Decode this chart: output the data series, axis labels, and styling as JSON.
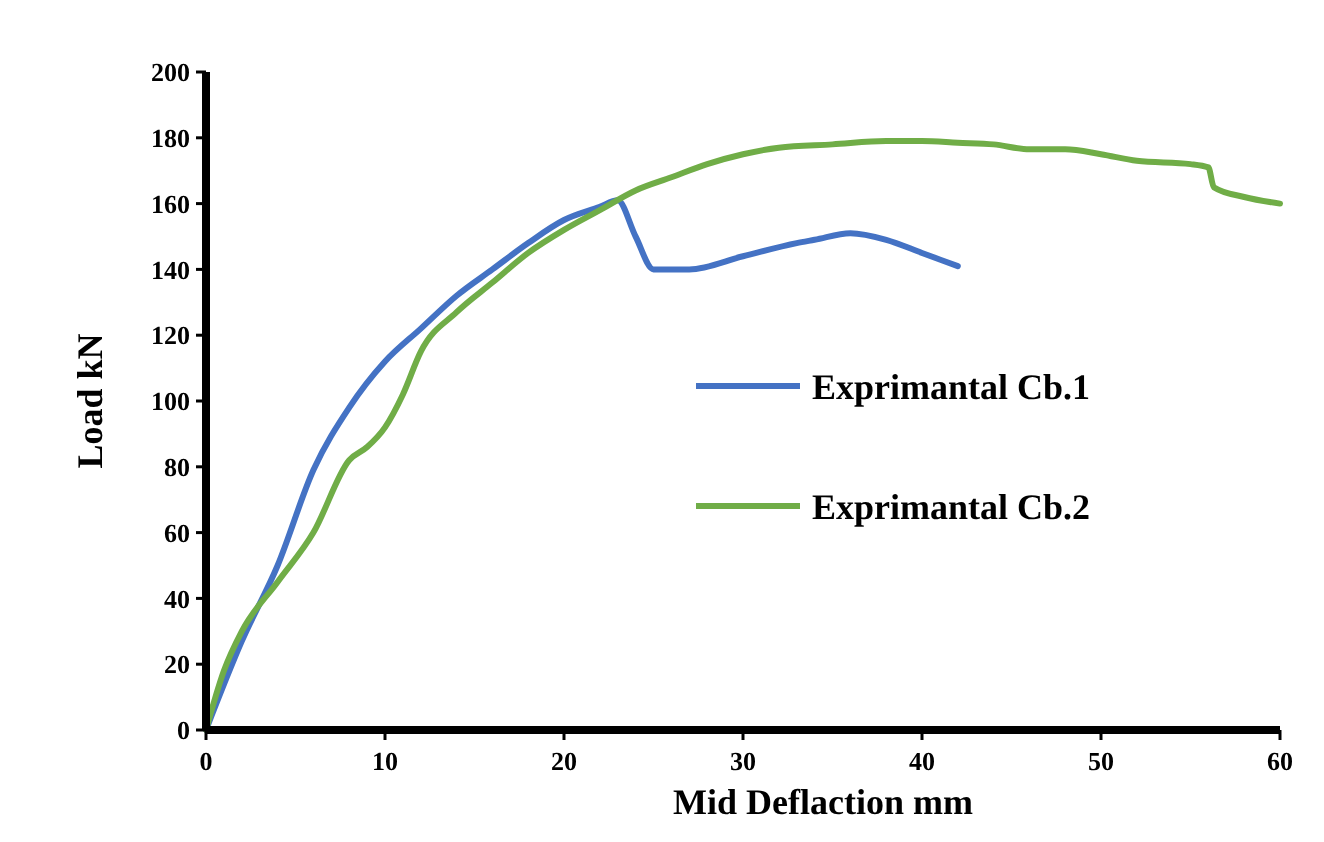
{
  "chart_data": {
    "type": "line",
    "xlabel": "Mid Deflaction mm",
    "ylabel": "Load kN",
    "xlim": [
      0,
      60
    ],
    "ylim": [
      0,
      200
    ],
    "xticks": [
      0,
      10,
      20,
      30,
      40,
      50,
      60
    ],
    "yticks": [
      0,
      20,
      40,
      60,
      80,
      100,
      120,
      140,
      160,
      180,
      200
    ],
    "grid": false,
    "legend": "right",
    "marker": "none",
    "line_style": "solid",
    "series": [
      {
        "name": "Exprimantal Cb.1",
        "color": "#4472c4",
        "x": [
          0,
          2,
          4,
          6,
          8,
          10,
          12,
          14,
          16,
          18,
          20,
          22,
          23,
          24,
          25,
          27,
          30,
          33,
          34,
          36,
          38,
          40,
          42
        ],
        "values": [
          0,
          27,
          50,
          79,
          98,
          112,
          122,
          132,
          140,
          148,
          155,
          159,
          161,
          150,
          140,
          140,
          144,
          148,
          149,
          151,
          149,
          145,
          141
        ]
      },
      {
        "name": "Exprimantal Cb.2",
        "color": "#70ad47",
        "x": [
          0,
          1,
          2,
          4,
          6,
          8,
          9,
          10,
          11,
          12,
          14,
          16,
          18,
          20,
          22,
          24,
          26,
          28,
          30,
          32,
          35,
          38,
          40,
          42,
          44,
          46,
          48,
          50,
          52,
          55,
          56,
          56.3,
          58,
          60
        ],
        "values": [
          0,
          18,
          30,
          45,
          60,
          82,
          86,
          92,
          102,
          115,
          127,
          136,
          145,
          152,
          158,
          164,
          168,
          172,
          175,
          177,
          178,
          179,
          179,
          178.5,
          178,
          176.5,
          176.5,
          175,
          173,
          172,
          171,
          165,
          162,
          160
        ]
      }
    ]
  }
}
